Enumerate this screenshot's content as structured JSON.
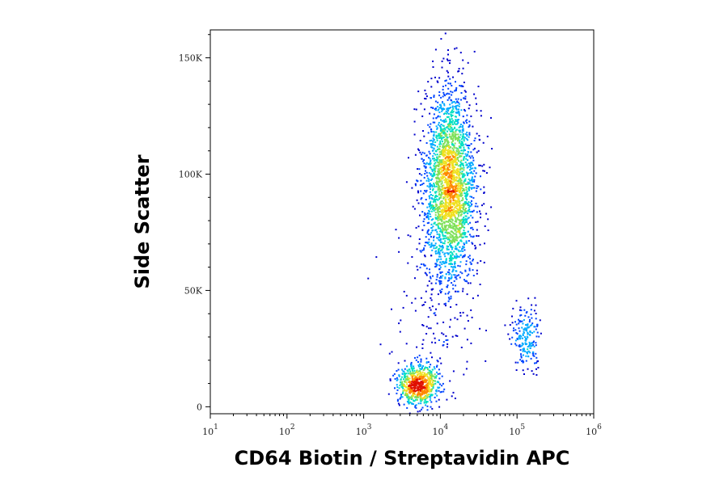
{
  "chart_data": {
    "type": "scatter",
    "title": "",
    "xlabel": "CD64 Biotin / Streptavidin APC",
    "ylabel": "Side Scatter",
    "x_scale": "log",
    "xlim": [
      10,
      1000000
    ],
    "ylim": [
      -3000,
      162000
    ],
    "x_ticks": [
      {
        "value": 10,
        "base": "10",
        "exp": "1"
      },
      {
        "value": 100,
        "base": "10",
        "exp": "2"
      },
      {
        "value": 1000,
        "base": "10",
        "exp": "3"
      },
      {
        "value": 10000,
        "base": "10",
        "exp": "4"
      },
      {
        "value": 100000,
        "base": "10",
        "exp": "5"
      },
      {
        "value": 1000000,
        "base": "10",
        "exp": "6"
      }
    ],
    "y_ticks": [
      {
        "value": 0,
        "label": "0"
      },
      {
        "value": 50000,
        "label": "50K"
      },
      {
        "value": 100000,
        "label": "100K"
      },
      {
        "value": 150000,
        "label": "150K"
      }
    ],
    "grid": false,
    "legend": "none",
    "density_colors": [
      "#0000cc",
      "#0044ff",
      "#00aaff",
      "#00e0c0",
      "#7ee05a",
      "#f0e020",
      "#ff8800",
      "#e01000"
    ],
    "populations": [
      {
        "x_center": 13000,
        "y_center": 95000,
        "x_spread_log10": 0.17,
        "y_spread": 21000,
        "events": 2600
      },
      {
        "x_center": 5000,
        "y_center": 10000,
        "x_spread_log10": 0.13,
        "y_spread": 4500,
        "events": 700
      },
      {
        "x_center": 130000,
        "y_center": 30000,
        "x_spread_log10": 0.1,
        "y_spread": 6500,
        "events": 200
      },
      {
        "x_center": 8000,
        "y_center": 40000,
        "x_spread_log10": 0.3,
        "y_spread": 18000,
        "events": 120
      }
    ]
  }
}
